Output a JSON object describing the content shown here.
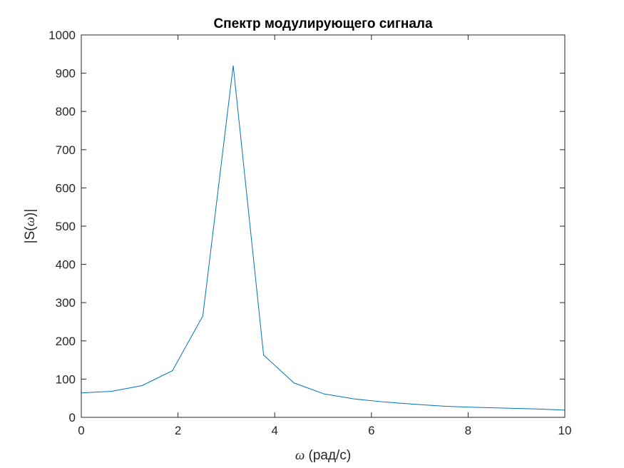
{
  "chart_data": {
    "type": "line",
    "title": "Спектр модулирующего сигнала",
    "xlabel_symbol": "ω",
    "xlabel_text": " (рад/с)",
    "ylabel_prefix": "|S(",
    "ylabel_symbol": "ω",
    "ylabel_suffix": ")|",
    "xlim": [
      0,
      10
    ],
    "ylim": [
      0,
      1000
    ],
    "xticks": [
      0,
      2,
      4,
      6,
      8,
      10
    ],
    "yticks": [
      0,
      100,
      200,
      300,
      400,
      500,
      600,
      700,
      800,
      900,
      1000
    ],
    "grid": false,
    "line_color": "#0072BD",
    "series": [
      {
        "x": [
          0,
          0.628,
          1.257,
          1.885,
          2.513,
          3.142,
          3.77,
          4.398,
          5.027,
          5.655,
          6.283,
          6.912,
          7.54,
          8.168,
          8.796,
          9.425,
          10.0
        ],
        "y": [
          64,
          68,
          83,
          122,
          265,
          920,
          163,
          90,
          61,
          48,
          40,
          34,
          29,
          26,
          24,
          22,
          19
        ]
      }
    ]
  }
}
